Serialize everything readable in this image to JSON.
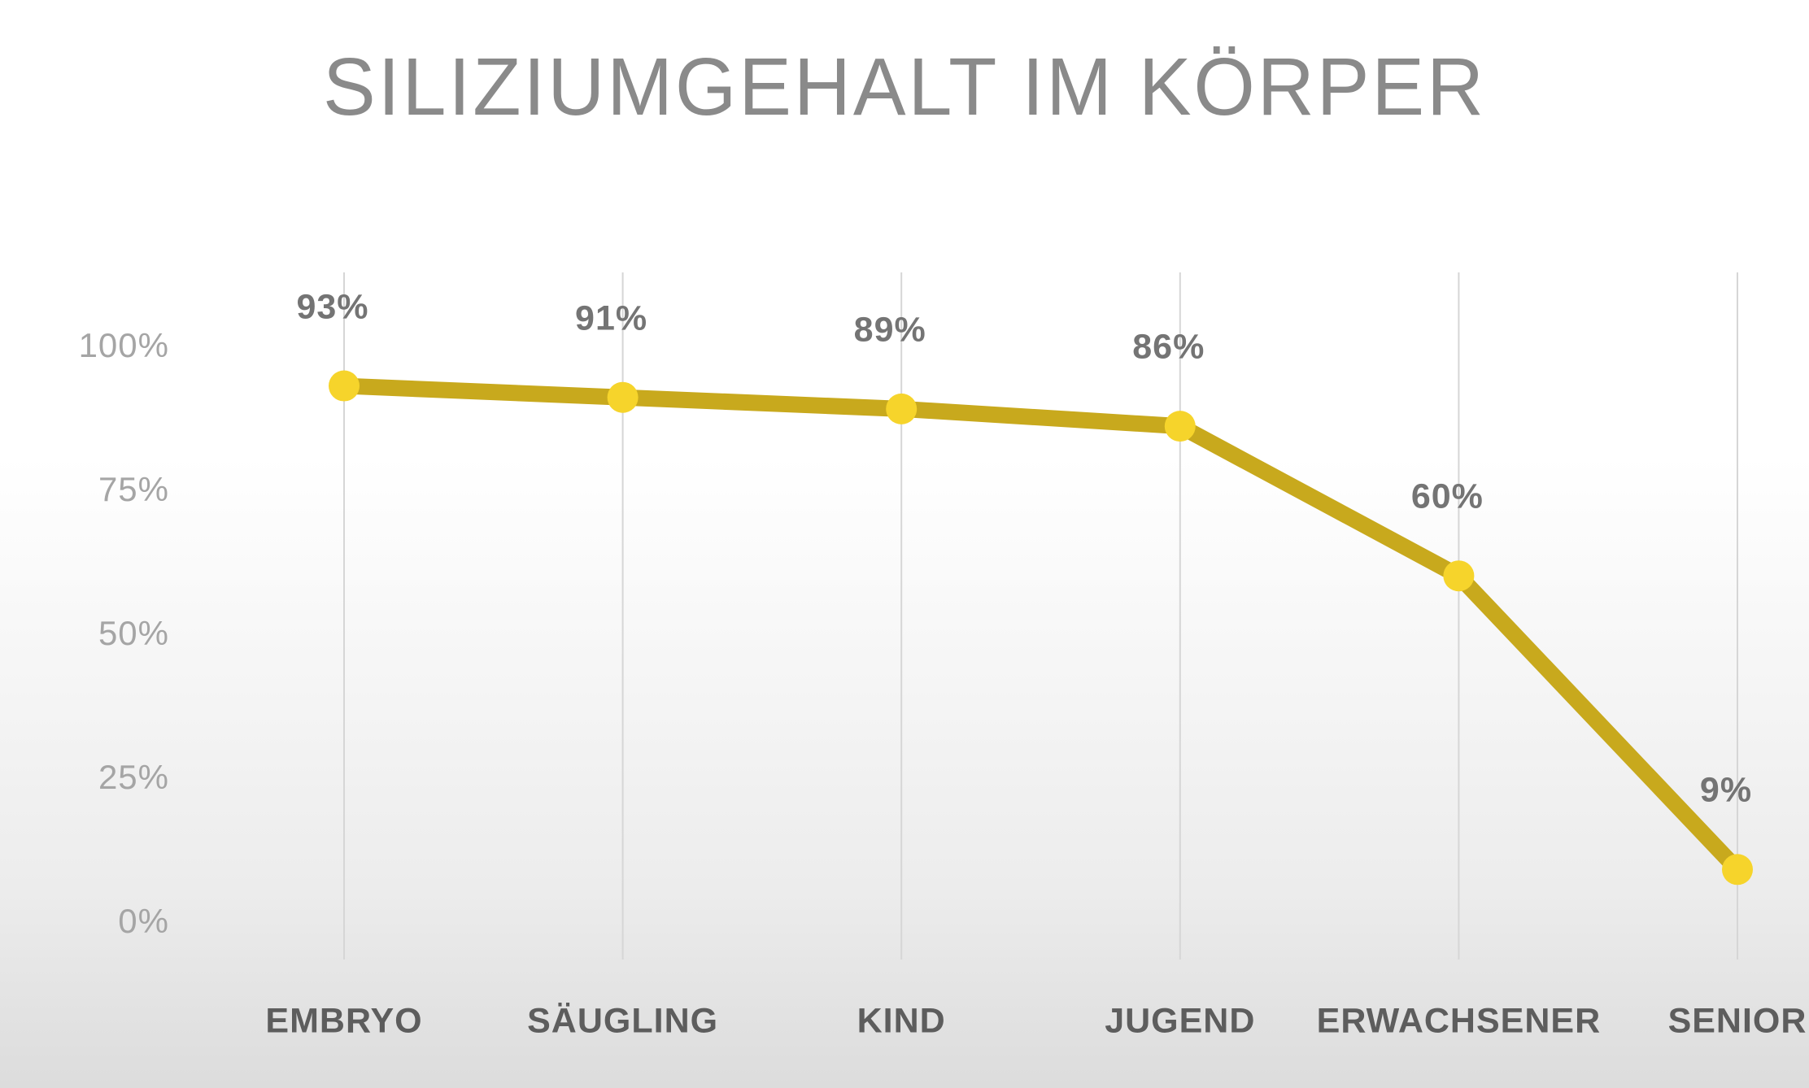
{
  "title": "SILIZIUMGEHALT IM KÖRPER",
  "chart_data": {
    "type": "line",
    "title": "SILIZIUMGEHALT IM KÖRPER",
    "categories": [
      "EMBRYO",
      "SÄUGLING",
      "KIND",
      "JUGEND",
      "ERWACHSENER",
      "SENIOR"
    ],
    "series": [
      {
        "name": "Siliziumgehalt",
        "values": [
          93,
          91,
          89,
          86,
          60,
          9
        ]
      }
    ],
    "data_labels": [
      "93%",
      "91%",
      "89%",
      "86%",
      "60%",
      "9%"
    ],
    "xlabel": "",
    "ylabel": "",
    "ylim": [
      0,
      100
    ],
    "yticks": [
      0,
      25,
      50,
      75,
      100
    ],
    "ytick_labels": [
      "0%",
      "25%",
      "50%",
      "75%",
      "100%"
    ],
    "grid": "vertical category gridlines only",
    "legend": "none",
    "styles": {
      "line_color": "#c8a91d",
      "point_color": "#f6d42b",
      "gridline_color": "#d6d6d6",
      "title_color": "#8a8a8a",
      "ytick_color": "#a5a5a5",
      "data_label_color": "#747474",
      "category_color": "#5d5d5d",
      "bg_top": "#ffffff",
      "bg_bottom": "#dcdcdc"
    }
  }
}
